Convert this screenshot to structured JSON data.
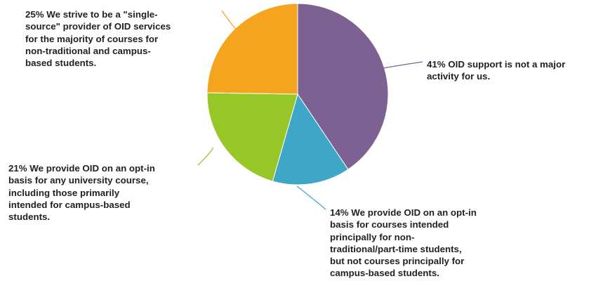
{
  "chart_data": {
    "type": "pie",
    "slices": [
      {
        "label": "41% OID support is not a major\nactivity for us.",
        "value": 41,
        "color": "#7d6193"
      },
      {
        "label": "14% We provide OID on an opt-in\nbasis for courses intended\nprincipally for non-\ntraditional/part-time students,\nbut not courses principally for\ncampus-based students.",
        "value": 14,
        "color": "#3ea6c6"
      },
      {
        "label": "21% We provide OID on an opt-in\nbasis for any university course,\nincluding those primarily\nintended for campus-based\nstudents.",
        "value": 21,
        "color": "#97c627"
      },
      {
        "label": "25% We strive to be a \"single-\nsource\" provider of OID services\nfor the majority of courses for\nnon-traditional and campus-\nbased students.",
        "value": 25,
        "color": "#f4a41e"
      }
    ]
  }
}
